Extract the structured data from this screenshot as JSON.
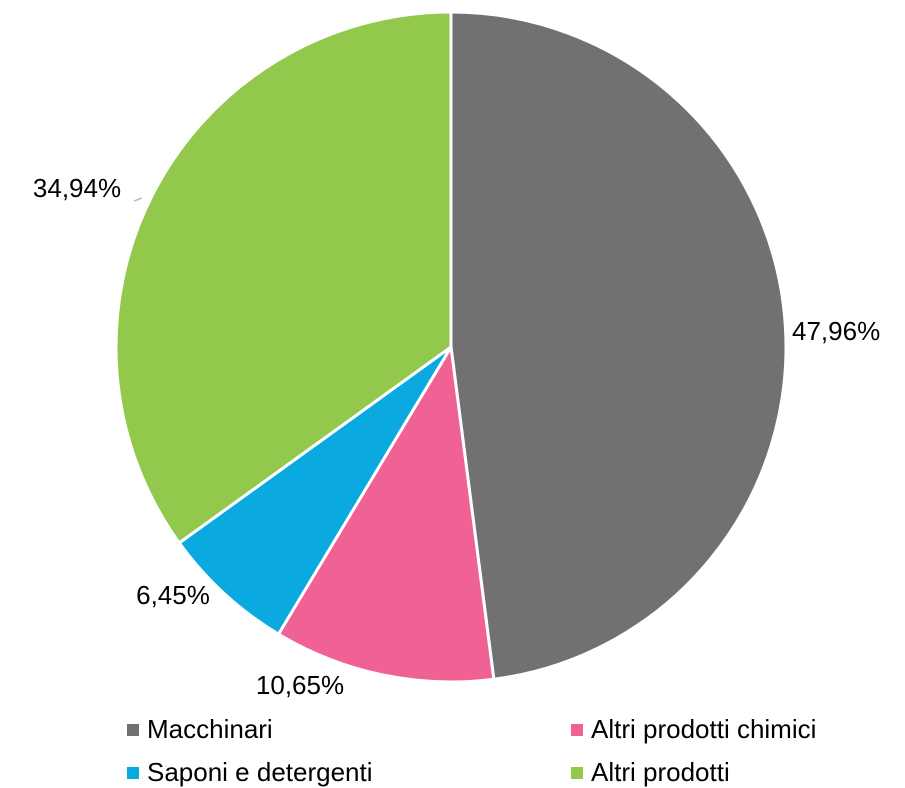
{
  "chart_data": {
    "type": "pie",
    "categories": [
      "Macchinari",
      "Altri prodotti chimici",
      "Saponi e detergenti",
      "Altri prodotti"
    ],
    "values": [
      47.96,
      10.65,
      6.45,
      34.94
    ],
    "value_labels": [
      "47,96%",
      "10,65%",
      "6,45%",
      "34,94%"
    ],
    "colors": [
      "#717171",
      "#f06195",
      "#0aa9df",
      "#92c84b"
    ]
  }
}
